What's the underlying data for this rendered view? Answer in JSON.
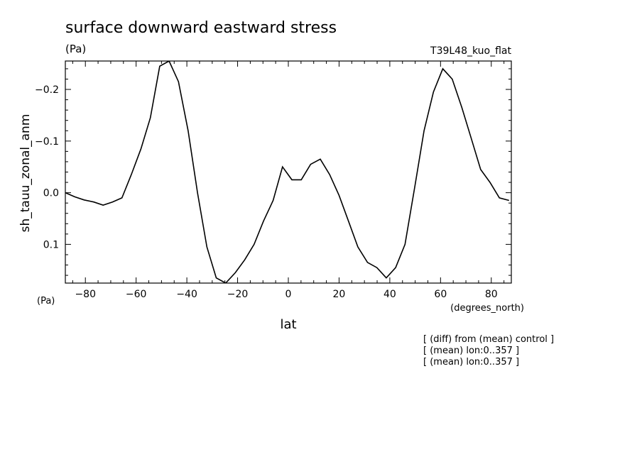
{
  "chart_data": {
    "type": "line",
    "title": "surface downward eastward stress",
    "subtitle": "(Pa)",
    "run_label": "T39L48_kuo_flat",
    "xlabel": "lat",
    "x_units": "(degrees_north)",
    "ylabel": "sh_tauu_zonal_anm",
    "y_units": "(Pa)",
    "xlim": [
      -87.9,
      87.9
    ],
    "ylim": [
      0.175,
      -0.255
    ],
    "y_inverted": true,
    "x_ticks": [
      -80,
      -60,
      -40,
      -20,
      0,
      20,
      40,
      60,
      80
    ],
    "x_tick_labels": [
      "−80",
      "−60",
      "−40",
      "−20",
      "0",
      "20",
      "40",
      "60",
      "80"
    ],
    "y_ticks": [
      -0.2,
      -0.1,
      0.0,
      0.1
    ],
    "y_tick_labels": [
      "−0.2",
      "−0.1",
      "0.0",
      "0.1"
    ],
    "grid": false,
    "notes": [
      "[ (diff) from (mean) control ]",
      "[ (mean) lon:0..357 ]",
      "[ (mean) lon:0..357 ]"
    ],
    "series": [
      {
        "color": "#000000",
        "x": [
          -87.9,
          -84.2,
          -80.5,
          -76.7,
          -73.0,
          -69.3,
          -65.6,
          -61.9,
          -58.1,
          -54.4,
          -50.7,
          -47.0,
          -43.3,
          -39.5,
          -35.8,
          -32.1,
          -28.4,
          -24.7,
          -20.9,
          -17.2,
          -13.5,
          -9.8,
          -6.0,
          -2.3,
          1.4,
          5.1,
          8.8,
          12.6,
          16.3,
          20.0,
          23.7,
          27.4,
          31.2,
          34.9,
          38.6,
          42.3,
          46.0,
          49.8,
          53.5,
          57.2,
          60.9,
          64.6,
          68.4,
          72.1,
          75.8,
          79.5,
          83.2,
          87.0
        ],
        "y": [
          0.0,
          0.008,
          0.014,
          0.018,
          0.024,
          0.018,
          0.01,
          -0.035,
          -0.085,
          -0.145,
          -0.245,
          -0.255,
          -0.215,
          -0.12,
          0.0,
          0.105,
          0.165,
          0.175,
          0.155,
          0.13,
          0.1,
          0.055,
          0.015,
          -0.05,
          -0.025,
          -0.025,
          -0.055,
          -0.065,
          -0.035,
          0.005,
          0.055,
          0.105,
          0.135,
          0.145,
          0.165,
          0.145,
          0.1,
          -0.01,
          -0.12,
          -0.195,
          -0.24,
          -0.22,
          -0.165,
          -0.105,
          -0.045,
          -0.02,
          0.01,
          0.015
        ]
      }
    ]
  }
}
